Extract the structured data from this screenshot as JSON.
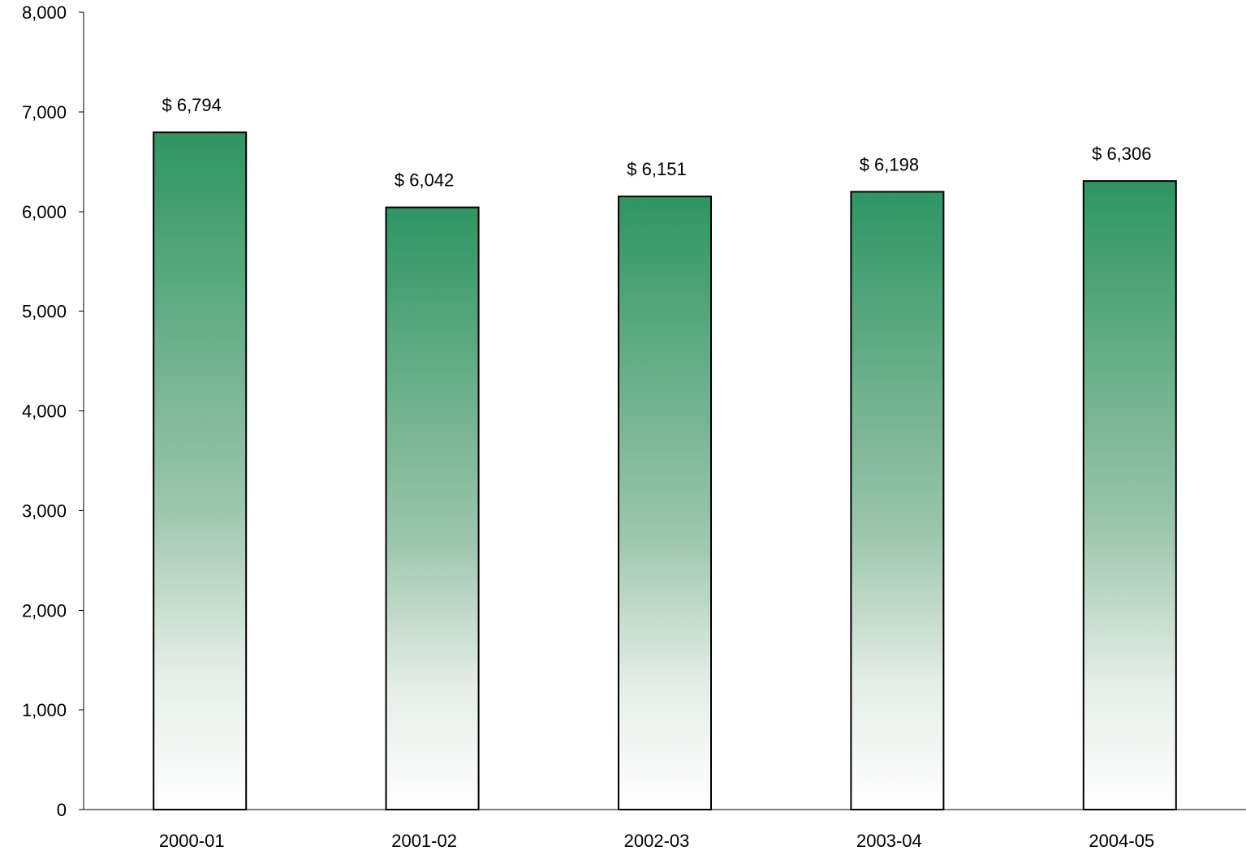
{
  "chart_data": {
    "type": "bar",
    "title": "",
    "xlabel": "",
    "ylabel": "",
    "categories": [
      "2000-01",
      "2001-02",
      "2002-03",
      "2003-04",
      "2004-05"
    ],
    "values": [
      6794,
      6042,
      6151,
      6198,
      6306
    ],
    "data_labels": [
      "$ 6,794",
      "$ 6,042",
      "$ 6,151",
      "$ 6,198",
      "$ 6,306"
    ],
    "ylim": [
      0,
      8000
    ],
    "yticks": [
      0,
      1000,
      2000,
      3000,
      4000,
      5000,
      6000,
      7000,
      8000
    ],
    "ytick_labels": [
      "0",
      "1,000",
      "2,000",
      "3,000",
      "4,000",
      "5,000",
      "6,000",
      "7,000",
      "8,000"
    ],
    "grid": false,
    "legend": "none",
    "colors": {
      "bar_top": "#2e9563",
      "bar_bottom": "#ffffff",
      "outline": "#000000"
    }
  }
}
